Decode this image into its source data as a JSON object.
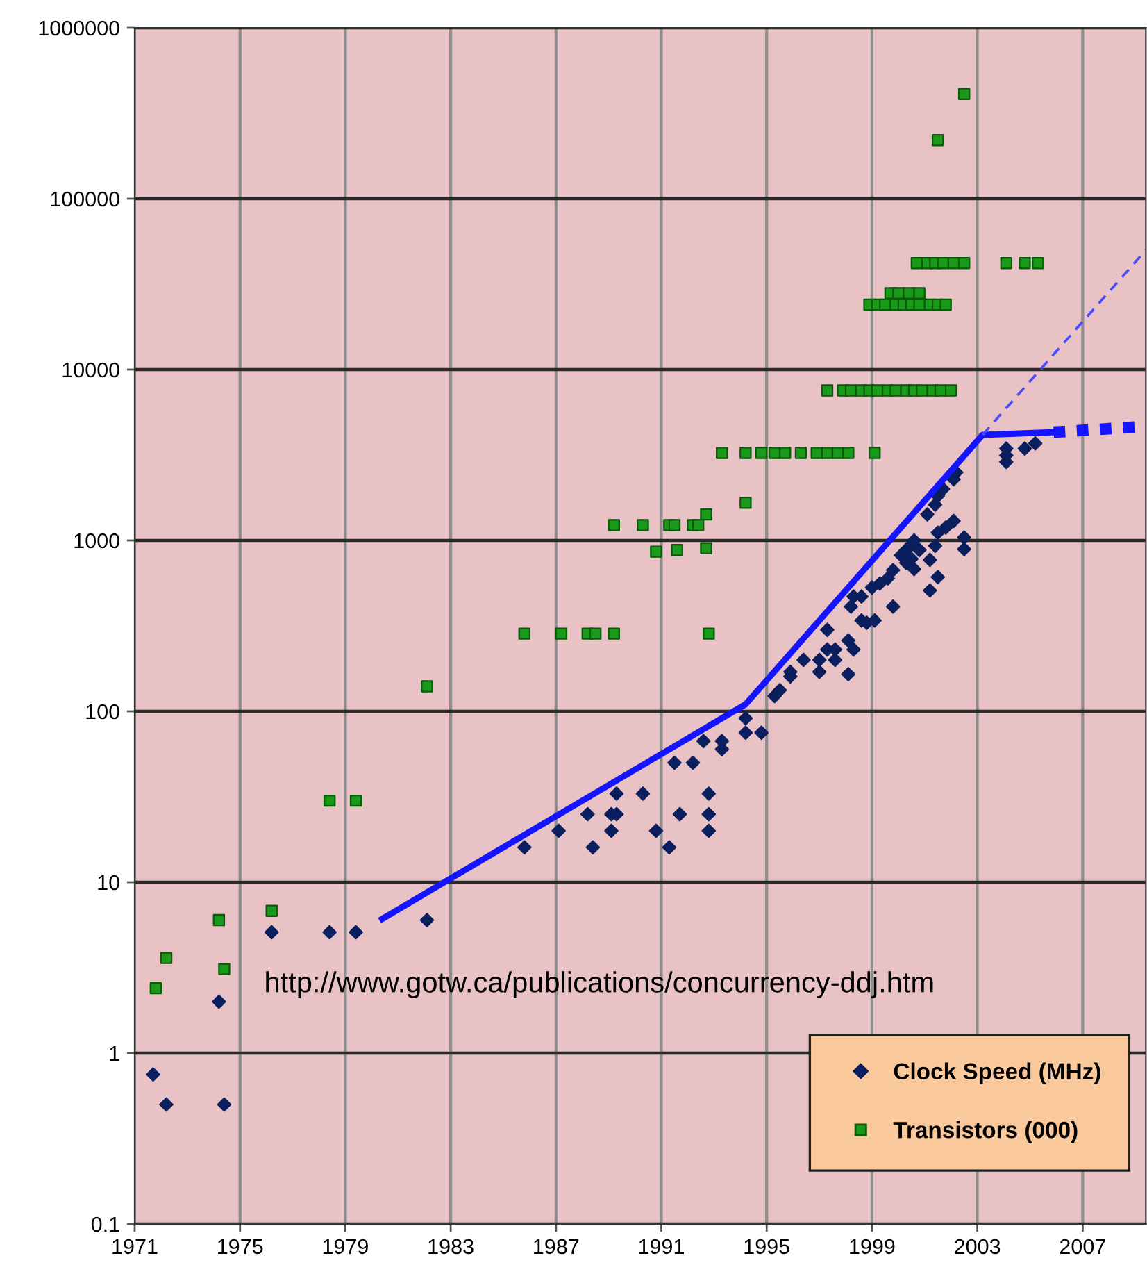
{
  "chart_data": {
    "type": "scatter",
    "annotations": [
      "http://www.gotw.ca/publications/concurrency-ddj.htm"
    ],
    "series": [
      {
        "name": "Clock Speed (MHz)",
        "marker": "diamond",
        "color": "#0b1f5e",
        "x": [
          1971.7,
          1972.2,
          1974.4,
          1974.2,
          1976.2,
          1978.4,
          1979.4,
          1982.1,
          1985.8,
          1987.1,
          1988.2,
          1988.4,
          1989.1,
          1989.3,
          1989.1,
          1989.3,
          1990.3,
          1990.8,
          1991.3,
          1991.5,
          1991.7,
          1992.2,
          1992.6,
          1992.8,
          1992.8,
          1992.8,
          1993.3,
          1993.3,
          1994.2,
          1994.2,
          1994.8,
          1995.3,
          1995.5,
          1995.9,
          1995.9,
          1996.4,
          1997.0,
          1997.0,
          1997.3,
          1997.3,
          1997.6,
          1997.6,
          1998.1,
          1998.1,
          1998.3,
          1998.2,
          1998.3,
          1998.6,
          1998.6,
          1998.8,
          1999.1,
          1999.0,
          1999.3,
          1999.6,
          1999.8,
          1999.8,
          2000.1,
          2000.3,
          2000.5,
          2000.6,
          2000.8,
          2000.3,
          2000.5,
          2000.6,
          2001.2,
          2001.5,
          2001.2,
          2001.4,
          2001.5,
          2001.8,
          2002.1,
          2001.1,
          2001.4,
          2001.5,
          2001.7,
          2002.1,
          2002.2,
          2002.5,
          2002.5,
          2004.1,
          2004.1,
          2004.1,
          2004.8,
          2005.2
        ],
        "values": [
          0.75,
          0.5,
          0.5,
          2,
          5.1,
          5.1,
          5.1,
          6,
          16,
          20,
          25,
          16,
          25,
          25,
          20,
          33,
          33,
          20,
          16,
          50,
          25,
          50,
          67,
          33,
          25,
          20,
          67,
          60,
          91,
          75,
          75,
          123,
          133,
          170,
          160,
          200,
          200,
          170,
          300,
          230,
          230,
          200,
          165,
          260,
          230,
          410,
          470,
          470,
          340,
          330,
          340,
          530,
          560,
          600,
          670,
          410,
          820,
          880,
          950,
          1000,
          880,
          740,
          780,
          680,
          510,
          610,
          770,
          930,
          1110,
          1190,
          1300,
          1420,
          1620,
          1820,
          2000,
          2280,
          2500,
          1040,
          890,
          3450,
          3150,
          2880,
          3450,
          3700
        ]
      },
      {
        "name": "Transistors (000)",
        "marker": "square",
        "color": "#1a9a1a",
        "x": [
          1971.8,
          1972.2,
          1974.2,
          1974.4,
          1976.2,
          1978.4,
          1979.4,
          1982.1,
          1985.8,
          1987.2,
          1988.2,
          1988.5,
          1989.2,
          1989.2,
          1990.3,
          1990.8,
          1991.3,
          1991.5,
          1991.6,
          1992.2,
          1992.4,
          1992.7,
          1992.7,
          1992.8,
          1993.3,
          1994.2,
          1994.8,
          1995.3,
          1995.7,
          1996.3,
          1996.9,
          1997.3,
          1997.7,
          1998.1,
          1999.1,
          1994.2,
          1997.3,
          1997.9,
          1998.2,
          1998.6,
          1998.9,
          1999.2,
          1999.6,
          1999.9,
          2000.3,
          2000.6,
          2000.9,
          2001.3,
          2001.6,
          2002.0,
          1998.9,
          1999.2,
          1999.5,
          1999.9,
          2000.2,
          2000.5,
          2000.8,
          2001.2,
          2001.5,
          2001.8,
          1999.7,
          2000.0,
          2000.4,
          2000.8,
          2000.7,
          2001.1,
          2001.4,
          2001.7,
          2002.1,
          2002.5,
          2004.1,
          2004.8,
          2005.3,
          2001.5,
          2002.5
        ],
        "values": [
          2.4,
          3.6,
          6,
          3.1,
          6.8,
          30,
          30,
          140,
          285,
          285,
          285,
          285,
          285,
          1230,
          1230,
          860,
          1230,
          1230,
          880,
          1230,
          1230,
          1420,
          900,
          285,
          3250,
          3250,
          3250,
          3250,
          3250,
          3250,
          3250,
          3250,
          3250,
          3250,
          3250,
          1660,
          7550,
          7550,
          7550,
          7550,
          7550,
          7550,
          7550,
          7550,
          7550,
          7550,
          7550,
          7550,
          7550,
          7550,
          24000,
          24000,
          24000,
          24000,
          24000,
          24000,
          24000,
          24000,
          24000,
          24000,
          28000,
          28000,
          28000,
          28000,
          42000,
          42000,
          42000,
          42000,
          42000,
          42000,
          42000,
          42000,
          42000,
          220000,
          410000
        ]
      },
      {
        "type": "line",
        "line_style": "solid",
        "color": "#1414ff",
        "x": [
          1980.4,
          1994.2,
          2003.2,
          2005.9
        ],
        "values": [
          6.1,
          110,
          4150,
          4300
        ]
      },
      {
        "type": "line",
        "line_style": "dotted",
        "color": "#1414ff",
        "x": [
          2005.9,
          2009.4
        ],
        "values": [
          4300,
          4650
        ]
      },
      {
        "type": "line",
        "line_style": "dashed",
        "color": "#4a4aff",
        "x": [
          2003.2,
          2009.4
        ],
        "values": [
          4150,
          50000
        ]
      }
    ],
    "xlim": [
      1971,
      2009.4
    ],
    "xticks": [
      1971,
      1975,
      1979,
      1983,
      1987,
      1991,
      1995,
      1999,
      2003,
      2007
    ],
    "log": "y",
    "ylim": [
      0.1,
      1000000
    ],
    "yticks": [
      0.1,
      1,
      10,
      100,
      1000,
      10000,
      100000,
      1000000
    ],
    "grid": true,
    "legend": "bottom right"
  }
}
